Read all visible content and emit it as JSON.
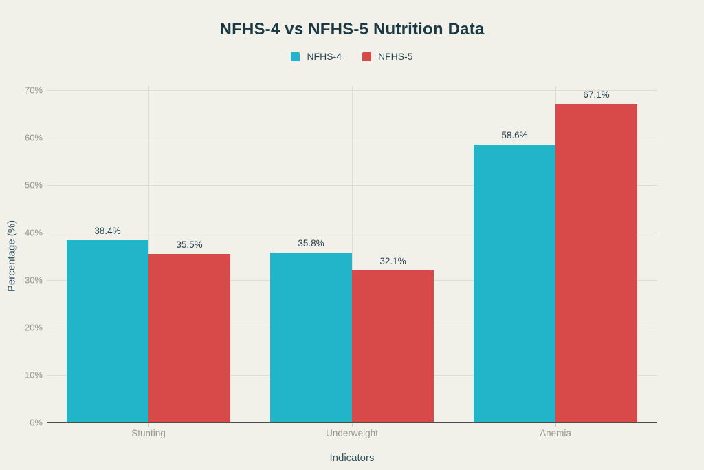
{
  "page": {
    "background": "#f1f0e9"
  },
  "chart_data": {
    "type": "bar",
    "title": "NFHS-4 vs NFHS-5 Nutrition Data",
    "xlabel": "Indicators",
    "ylabel": "Percentage (%)",
    "categories": [
      "Stunting",
      "Underweight",
      "Anemia"
    ],
    "series": [
      {
        "name": "NFHS-4",
        "color": "#22b5c9",
        "values": [
          38.4,
          35.8,
          58.6
        ],
        "value_labels": [
          "38.4%",
          "35.8%",
          "58.6%"
        ]
      },
      {
        "name": "NFHS-5",
        "color": "#d84a4a",
        "values": [
          35.5,
          32.1,
          67.1
        ],
        "value_labels": [
          "35.5%",
          "32.1%",
          "67.1%"
        ]
      }
    ],
    "ylim": [
      0,
      70
    ],
    "y_ticks": [
      {
        "value": 0,
        "label": "0%"
      },
      {
        "value": 10,
        "label": "10%"
      },
      {
        "value": 20,
        "label": "20%"
      },
      {
        "value": 30,
        "label": "30%"
      },
      {
        "value": 40,
        "label": "40%"
      },
      {
        "value": 50,
        "label": "50%"
      },
      {
        "value": 60,
        "label": "60%"
      },
      {
        "value": 70,
        "label": "70%"
      }
    ],
    "grid": true,
    "legend_position": "top"
  },
  "colors": {
    "background": "#f1f0e9",
    "title_text": "#1a3945",
    "value_label_text": "#2b4653",
    "axis_title_text": "#33525e",
    "tick_label_text": "#98978f",
    "gridline": "#dedcd4",
    "axis_line": "#4d4d4d",
    "series_nfhs4": "#22b5c9",
    "series_nfhs5": "#d84a4a"
  }
}
